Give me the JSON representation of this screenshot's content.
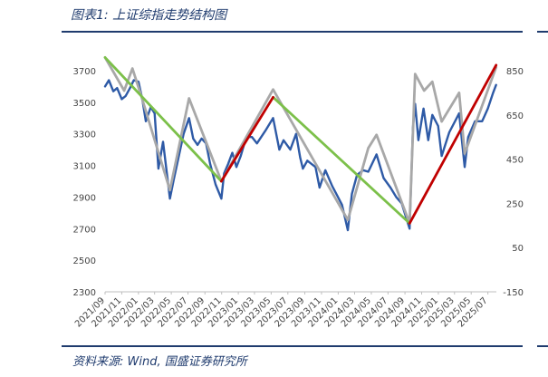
{
  "figure_title": "图表1:  上证综指走势结构图",
  "source_note": "资料来源:  Wind, 国盛证券研究所",
  "colors": {
    "index_line": "#2e5aa6",
    "structure_line": "#a8a8a8",
    "down_trend": "#7cc04a",
    "up_trend": "#c00000",
    "accent": "#1f3b6e"
  },
  "chart_data": {
    "type": "line",
    "title": "",
    "xlabel": "",
    "ylabel": "",
    "x_ticks": [
      "2021/09",
      "2021/11",
      "2022/01",
      "2022/03",
      "2022/05",
      "2022/07",
      "2022/09",
      "2022/11",
      "2023/01",
      "2023/03",
      "2023/05",
      "2023/07",
      "2023/09",
      "2023/11",
      "2024/01",
      "2024/03",
      "2024/05",
      "2024/07",
      "2024/09",
      "2024/11",
      "2025/01",
      "2025/03",
      "2025/05",
      "2025/07"
    ],
    "x_range": [
      "2021-09-01",
      "2025-08-01"
    ],
    "left_axis": {
      "ticks": [
        3700,
        3500,
        3300,
        3100,
        2900,
        2700,
        2500,
        2300
      ],
      "range": [
        2300,
        3700
      ]
    },
    "right_axis": {
      "ticks": [
        850,
        650,
        450,
        250,
        50,
        -150
      ],
      "range": [
        -150,
        850
      ]
    },
    "grid": false,
    "legend": "none",
    "series": [
      {
        "role": "index",
        "axis": "left",
        "color": "#2e5aa6",
        "points": [
          [
            "2021-09-01",
            3600
          ],
          [
            "2021-09-15",
            3640
          ],
          [
            "2021-10-01",
            3570
          ],
          [
            "2021-10-15",
            3590
          ],
          [
            "2021-11-01",
            3520
          ],
          [
            "2021-11-15",
            3540
          ],
          [
            "2021-12-01",
            3590
          ],
          [
            "2021-12-15",
            3640
          ],
          [
            "2022-01-01",
            3630
          ],
          [
            "2022-01-15",
            3520
          ],
          [
            "2022-01-28",
            3380
          ],
          [
            "2022-02-15",
            3470
          ],
          [
            "2022-03-01",
            3430
          ],
          [
            "2022-03-15",
            3080
          ],
          [
            "2022-04-01",
            3250
          ],
          [
            "2022-04-26",
            2890
          ],
          [
            "2022-05-10",
            3010
          ],
          [
            "2022-05-31",
            3180
          ],
          [
            "2022-06-15",
            3300
          ],
          [
            "2022-07-05",
            3400
          ],
          [
            "2022-07-20",
            3270
          ],
          [
            "2022-08-05",
            3230
          ],
          [
            "2022-08-20",
            3270
          ],
          [
            "2022-09-05",
            3240
          ],
          [
            "2022-09-20",
            3110
          ],
          [
            "2022-10-10",
            2980
          ],
          [
            "2022-10-31",
            2890
          ],
          [
            "2022-11-10",
            3050
          ],
          [
            "2022-11-25",
            3110
          ],
          [
            "2022-12-10",
            3180
          ],
          [
            "2022-12-25",
            3090
          ],
          [
            "2023-01-10",
            3160
          ],
          [
            "2023-01-30",
            3280
          ],
          [
            "2023-02-20",
            3280
          ],
          [
            "2023-03-10",
            3240
          ],
          [
            "2023-04-10",
            3320
          ],
          [
            "2023-05-08",
            3400
          ],
          [
            "2023-05-31",
            3200
          ],
          [
            "2023-06-15",
            3260
          ],
          [
            "2023-07-10",
            3200
          ],
          [
            "2023-07-31",
            3300
          ],
          [
            "2023-08-15",
            3150
          ],
          [
            "2023-08-25",
            3080
          ],
          [
            "2023-09-10",
            3130
          ],
          [
            "2023-10-10",
            3090
          ],
          [
            "2023-10-25",
            2960
          ],
          [
            "2023-11-15",
            3070
          ],
          [
            "2023-12-10",
            2970
          ],
          [
            "2023-12-25",
            2920
          ],
          [
            "2024-01-15",
            2850
          ],
          [
            "2024-02-05",
            2690
          ],
          [
            "2024-02-20",
            2920
          ],
          [
            "2024-03-10",
            3040
          ],
          [
            "2024-04-01",
            3070
          ],
          [
            "2024-04-20",
            3060
          ],
          [
            "2024-05-20",
            3170
          ],
          [
            "2024-06-15",
            3020
          ],
          [
            "2024-07-10",
            2960
          ],
          [
            "2024-07-31",
            2900
          ],
          [
            "2024-08-20",
            2860
          ],
          [
            "2024-09-18",
            2700
          ],
          [
            "2024-09-30",
            3340
          ],
          [
            "2024-10-08",
            3490
          ],
          [
            "2024-10-20",
            3260
          ],
          [
            "2024-11-08",
            3460
          ],
          [
            "2024-11-25",
            3260
          ],
          [
            "2024-12-10",
            3420
          ],
          [
            "2024-12-31",
            3350
          ],
          [
            "2025-01-13",
            3160
          ],
          [
            "2025-02-10",
            3310
          ],
          [
            "2025-03-18",
            3430
          ],
          [
            "2025-04-07",
            3090
          ],
          [
            "2025-04-20",
            3280
          ],
          [
            "2025-05-15",
            3380
          ],
          [
            "2025-06-10",
            3380
          ],
          [
            "2025-07-01",
            3460
          ],
          [
            "2025-07-20",
            3560
          ],
          [
            "2025-07-31",
            3610
          ]
        ]
      },
      {
        "role": "structure",
        "axis": "right",
        "color": "#a8a8a8",
        "points": [
          [
            "2021-09-01",
            910
          ],
          [
            "2021-11-10",
            760
          ],
          [
            "2021-12-10",
            860
          ],
          [
            "2022-01-10",
            740
          ],
          [
            "2022-04-26",
            310
          ],
          [
            "2022-07-05",
            725
          ],
          [
            "2022-10-31",
            350
          ],
          [
            "2023-05-08",
            765
          ],
          [
            "2024-02-05",
            175
          ],
          [
            "2024-04-20",
            500
          ],
          [
            "2024-05-20",
            560
          ],
          [
            "2024-09-18",
            160
          ],
          [
            "2024-10-08",
            835
          ],
          [
            "2024-11-10",
            760
          ],
          [
            "2024-12-10",
            800
          ],
          [
            "2025-01-13",
            620
          ],
          [
            "2025-03-18",
            750
          ],
          [
            "2025-04-07",
            475
          ],
          [
            "2025-07-31",
            865
          ]
        ]
      },
      {
        "role": "downtrend",
        "axis": "right",
        "color": "#7cc04a",
        "points": [
          [
            "2021-09-01",
            910
          ],
          [
            "2022-10-31",
            350
          ]
        ]
      },
      {
        "role": "downtrend",
        "axis": "right",
        "color": "#7cc04a",
        "points": [
          [
            "2023-05-08",
            730
          ],
          [
            "2024-09-18",
            160
          ]
        ]
      },
      {
        "role": "uptrend",
        "axis": "right",
        "color": "#c00000",
        "points": [
          [
            "2022-10-31",
            350
          ],
          [
            "2023-05-08",
            730
          ]
        ]
      },
      {
        "role": "uptrend",
        "axis": "right",
        "color": "#c00000",
        "points": [
          [
            "2024-09-18",
            160
          ],
          [
            "2025-07-31",
            875
          ]
        ]
      }
    ]
  }
}
